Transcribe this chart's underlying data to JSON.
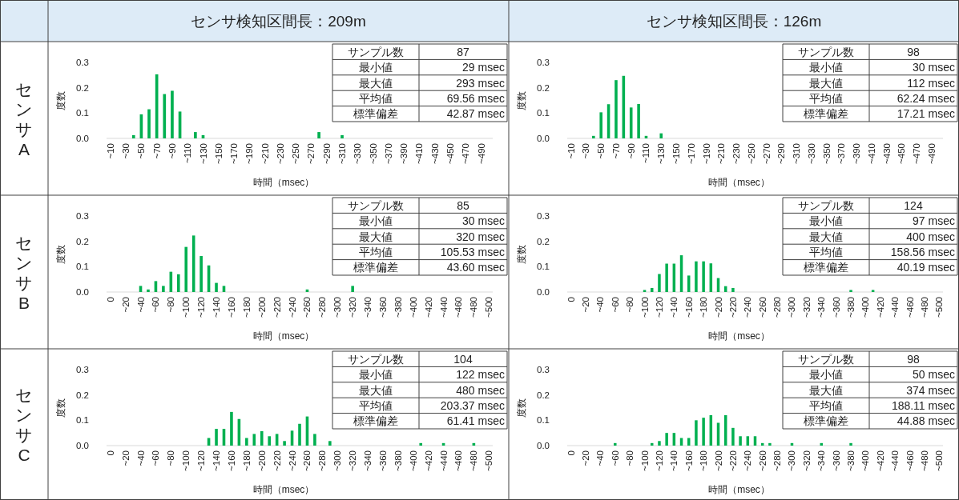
{
  "chart_data": [
    {
      "type": "bar",
      "title": "センサ検知区間長：209m",
      "subtitle": "センサA",
      "xlabel": "時間（msec）",
      "ylabel": "度数",
      "color": "#00b050",
      "ylim": [
        0,
        0.3
      ],
      "yticks": [
        {
          "value": 0,
          "label": "0.0"
        },
        {
          "value": 0.1,
          "label": "0.1"
        },
        {
          "value": 0.2,
          "label": "0.2"
        },
        {
          "value": 0.3,
          "label": "0.3"
        }
      ],
      "categories": [
        "~10",
        null,
        "~30",
        null,
        "~50",
        null,
        "~70",
        null,
        "~90",
        null,
        "~110",
        null,
        "~130",
        null,
        "~150",
        null,
        "~170",
        null,
        "~190",
        null,
        "~210",
        null,
        "~230",
        null,
        "~250",
        null,
        "~270",
        null,
        "~290",
        null,
        "~310",
        null,
        "~330",
        null,
        "~350",
        null,
        "~370",
        null,
        "~390",
        null,
        "~410",
        null,
        "~430",
        null,
        "~450",
        null,
        "~470",
        null,
        "~490",
        null
      ],
      "values": [
        0,
        0,
        0,
        0.013,
        0.095,
        0.115,
        0.253,
        0.175,
        0.188,
        0.106,
        0,
        0.025,
        0.013,
        0,
        0,
        0,
        0,
        0,
        0,
        0,
        0,
        0,
        0,
        0,
        0,
        0,
        0,
        0.025,
        0,
        0,
        0.013,
        0,
        0,
        0,
        0,
        0,
        0,
        0,
        0,
        0,
        0,
        0,
        0,
        0,
        0,
        0,
        0,
        0,
        0,
        0
      ],
      "annotations": [
        "サンプル数",
        "87",
        "最小値",
        "29 msec",
        "最大値",
        "293 msec",
        "平均値",
        "69.56 msec",
        "標準偏差",
        "42.87 msec"
      ]
    },
    {
      "type": "bar",
      "title": "センサ検知区間長：126m",
      "xlabel": "時間（msec）",
      "ylabel": "度数",
      "color": "#00b050",
      "ylim": [
        0,
        0.3
      ],
      "yticks": [
        {
          "value": 0,
          "label": "0.0"
        },
        {
          "value": 0.1,
          "label": "0.1"
        },
        {
          "value": 0.2,
          "label": "0.2"
        },
        {
          "value": 0.3,
          "label": "0.3"
        }
      ],
      "categories": [
        "~10",
        null,
        "~30",
        null,
        "~50",
        null,
        "~70",
        null,
        "~90",
        null,
        "~110",
        null,
        "~130",
        null,
        "~150",
        null,
        "~170",
        null,
        "~190",
        null,
        "~210",
        null,
        "~230",
        null,
        "~250",
        null,
        "~270",
        null,
        "~290",
        null,
        "~310",
        null,
        "~330",
        null,
        "~350",
        null,
        "~370",
        null,
        "~390",
        null,
        "~410",
        null,
        "~430",
        null,
        "~450",
        null,
        "~470",
        null,
        "~490",
        null
      ],
      "values": [
        0,
        0,
        0,
        0.01,
        0.103,
        0.135,
        0.23,
        0.247,
        0.122,
        0.136,
        0.01,
        0,
        0.02,
        0,
        0,
        0,
        0,
        0,
        0,
        0,
        0,
        0,
        0,
        0,
        0,
        0,
        0,
        0,
        0,
        0,
        0,
        0,
        0,
        0,
        0,
        0,
        0,
        0,
        0,
        0,
        0,
        0,
        0,
        0,
        0,
        0,
        0,
        0,
        0,
        0
      ],
      "annotations": [
        "サンプル数",
        "98",
        "最小値",
        "30 msec",
        "最大値",
        "112 msec",
        "平均値",
        "62.24 msec",
        "標準偏差",
        "17.21 msec"
      ]
    },
    {
      "type": "bar",
      "subtitle": "センサB",
      "xlabel": "時間（msec）",
      "ylabel": "度数",
      "color": "#00b050",
      "ylim": [
        0,
        0.3
      ],
      "yticks": [
        {
          "value": 0,
          "label": "0.0"
        },
        {
          "value": 0.1,
          "label": "0.1"
        },
        {
          "value": 0.2,
          "label": "0.2"
        },
        {
          "value": 0.3,
          "label": "0.3"
        }
      ],
      "categories": [
        "0",
        null,
        "~20",
        null,
        "~40",
        null,
        "~60",
        null,
        "~80",
        null,
        "~100",
        null,
        "~120",
        null,
        "~140",
        null,
        "~160",
        null,
        "~180",
        null,
        "~200",
        null,
        "~220",
        null,
        "~240",
        null,
        "~260",
        null,
        "~280",
        null,
        "~300",
        null,
        "~320",
        null,
        "~340",
        null,
        "~360",
        null,
        "~380",
        null,
        "~400",
        null,
        "~420",
        null,
        "~440",
        null,
        "~460",
        null,
        "~480",
        null,
        "~500"
      ],
      "values": [
        0,
        0,
        0,
        0,
        0.024,
        0.01,
        0.043,
        0.024,
        0.08,
        0.07,
        0.178,
        0.223,
        0.142,
        0.105,
        0.036,
        0.024,
        0,
        0,
        0,
        0,
        0,
        0,
        0,
        0,
        0,
        0,
        0.01,
        0,
        0,
        0,
        0,
        0,
        0.024,
        0,
        0,
        0,
        0,
        0,
        0,
        0,
        0,
        0,
        0,
        0,
        0,
        0,
        0,
        0,
        0,
        0,
        0
      ],
      "annotations": [
        "サンプル数",
        "85",
        "最小値",
        "30 msec",
        "最大値",
        "320 msec",
        "平均値",
        "105.53 msec",
        "標準偏差",
        "43.60 msec"
      ]
    },
    {
      "type": "bar",
      "xlabel": "時間（msec）",
      "ylabel": "度数",
      "color": "#00b050",
      "ylim": [
        0,
        0.3
      ],
      "yticks": [
        {
          "value": 0,
          "label": "0.0"
        },
        {
          "value": 0.1,
          "label": "0.1"
        },
        {
          "value": 0.2,
          "label": "0.2"
        },
        {
          "value": 0.3,
          "label": "0.3"
        }
      ],
      "categories": [
        "0",
        null,
        "~20",
        null,
        "~40",
        null,
        "~60",
        null,
        "~80",
        null,
        "~100",
        null,
        "~120",
        null,
        "~140",
        null,
        "~160",
        null,
        "~180",
        null,
        "~200",
        null,
        "~220",
        null,
        "~240",
        null,
        "~260",
        null,
        "~280",
        null,
        "~300",
        null,
        "~320",
        null,
        "~340",
        null,
        "~360",
        null,
        "~380",
        null,
        "~400",
        null,
        "~420",
        null,
        "~440",
        null,
        "~460",
        null,
        "~480",
        null,
        "~500"
      ],
      "values": [
        0,
        0,
        0,
        0,
        0,
        0,
        0,
        0,
        0,
        0,
        0.008,
        0.016,
        0.071,
        0.112,
        0.112,
        0.145,
        0.065,
        0.121,
        0.121,
        0.113,
        0.055,
        0.023,
        0.016,
        0,
        0,
        0,
        0,
        0,
        0,
        0,
        0,
        0,
        0,
        0,
        0,
        0,
        0,
        0,
        0.008,
        0,
        0,
        0.008,
        0,
        0,
        0,
        0,
        0,
        0,
        0,
        0,
        0
      ],
      "annotations": [
        "サンプル数",
        "124",
        "最小値",
        "97 msec",
        "最大値",
        "400 msec",
        "平均値",
        "158.56 msec",
        "標準偏差",
        "40.19 msec"
      ]
    },
    {
      "type": "bar",
      "subtitle": "センサC",
      "xlabel": "時間（msec）",
      "ylabel": "度数",
      "color": "#00b050",
      "ylim": [
        0,
        0.3
      ],
      "yticks": [
        {
          "value": 0,
          "label": "0.0"
        },
        {
          "value": 0.1,
          "label": "0.1"
        },
        {
          "value": 0.2,
          "label": "0.2"
        },
        {
          "value": 0.3,
          "label": "0.3"
        }
      ],
      "categories": [
        "0",
        null,
        "~20",
        null,
        "~40",
        null,
        "~60",
        null,
        "~80",
        null,
        "~100",
        null,
        "~120",
        null,
        "~140",
        null,
        "~160",
        null,
        "~180",
        null,
        "~200",
        null,
        "~220",
        null,
        "~240",
        null,
        "~260",
        null,
        "~280",
        null,
        "~300",
        null,
        "~320",
        null,
        "~340",
        null,
        "~360",
        null,
        "~380",
        null,
        "~400",
        null,
        "~420",
        null,
        "~440",
        null,
        "~460",
        null,
        "~480",
        null,
        "~500"
      ],
      "values": [
        0,
        0,
        0,
        0,
        0,
        0,
        0,
        0,
        0,
        0,
        0,
        0,
        0,
        0.03,
        0.066,
        0.066,
        0.133,
        0.105,
        0.03,
        0.046,
        0.057,
        0.037,
        0.046,
        0.018,
        0.059,
        0.086,
        0.115,
        0.046,
        0,
        0.018,
        0,
        0,
        0,
        0,
        0,
        0,
        0,
        0,
        0,
        0,
        0,
        0.01,
        0,
        0,
        0.01,
        0,
        0,
        0,
        0.01,
        0,
        0
      ],
      "annotations": [
        "サンプル数",
        "104",
        "最小値",
        "122 msec",
        "最大値",
        "480 msec",
        "平均値",
        "203.37 msec",
        "標準偏差",
        "61.41 msec"
      ]
    },
    {
      "type": "bar",
      "xlabel": "時間（msec）",
      "ylabel": "度数",
      "color": "#00b050",
      "ylim": [
        0,
        0.3
      ],
      "yticks": [
        {
          "value": 0,
          "label": "0.0"
        },
        {
          "value": 0.1,
          "label": "0.1"
        },
        {
          "value": 0.2,
          "label": "0.2"
        },
        {
          "value": 0.3,
          "label": "0.3"
        }
      ],
      "categories": [
        "0",
        null,
        "~20",
        null,
        "~40",
        null,
        "~60",
        null,
        "~80",
        null,
        "~100",
        null,
        "~120",
        null,
        "~140",
        null,
        "~160",
        null,
        "~180",
        null,
        "~200",
        null,
        "~220",
        null,
        "~240",
        null,
        "~260",
        null,
        "~280",
        null,
        "~300",
        null,
        "~320",
        null,
        "~340",
        null,
        "~360",
        null,
        "~380",
        null,
        "~400",
        null,
        "~420",
        null,
        "~440",
        null,
        "~460",
        null,
        "~480",
        null,
        "~500"
      ],
      "values": [
        0,
        0,
        0,
        0,
        0,
        0,
        0.01,
        0,
        0,
        0,
        0,
        0.01,
        0.018,
        0.05,
        0.05,
        0.03,
        0.03,
        0.1,
        0.11,
        0.12,
        0.09,
        0.12,
        0.07,
        0.037,
        0.037,
        0.037,
        0.01,
        0.01,
        0,
        0,
        0.01,
        0,
        0,
        0,
        0.01,
        0,
        0,
        0,
        0.01,
        0,
        0,
        0,
        0,
        0,
        0,
        0,
        0,
        0,
        0,
        0,
        0
      ],
      "annotations": [
        "サンプル数",
        "98",
        "最小値",
        "50 msec",
        "最大値",
        "374 msec",
        "平均値",
        "188.11 msec",
        "標準偏差",
        "44.88 msec"
      ]
    }
  ]
}
